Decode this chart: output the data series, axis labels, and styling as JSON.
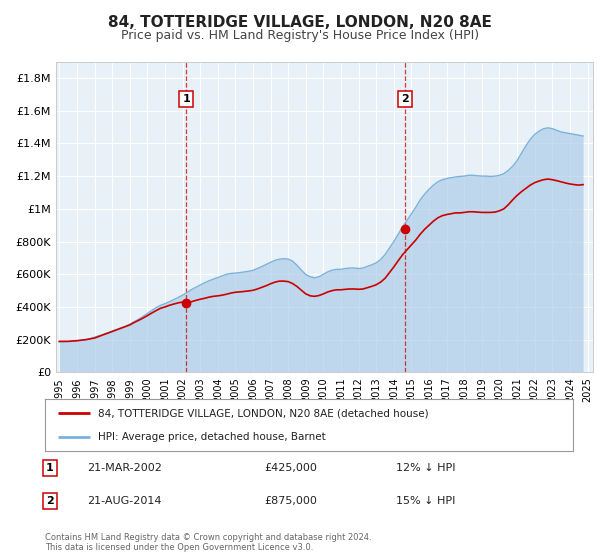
{
  "title": "84, TOTTERIDGE VILLAGE, LONDON, N20 8AE",
  "subtitle": "Price paid vs. HM Land Registry's House Price Index (HPI)",
  "title_fontsize": 11,
  "subtitle_fontsize": 9,
  "background_color": "#ffffff",
  "plot_bg_color": "#e8f0f8",
  "grid_color": "#ffffff",
  "ylim": [
    0,
    1900000
  ],
  "xlim_start": 1994.8,
  "xlim_end": 2025.3,
  "yticks": [
    0,
    200000,
    400000,
    600000,
    800000,
    1000000,
    1200000,
    1400000,
    1600000,
    1800000
  ],
  "ytick_labels": [
    "£0",
    "£200K",
    "£400K",
    "£600K",
    "£800K",
    "£1M",
    "£1.2M",
    "£1.4M",
    "£1.6M",
    "£1.8M"
  ],
  "event1_x": 2002.22,
  "event1_y": 425000,
  "event1_label": "1",
  "event1_date": "21-MAR-2002",
  "event1_price": "£425,000",
  "event1_hpi": "12% ↓ HPI",
  "event2_x": 2014.64,
  "event2_y": 875000,
  "event2_label": "2",
  "event2_date": "21-AUG-2014",
  "event2_price": "£875,000",
  "event2_hpi": "15% ↓ HPI",
  "red_line_color": "#cc0000",
  "blue_line_color": "#7ab3d9",
  "blue_fill_color": "#aecde8",
  "legend_label_red": "84, TOTTERIDGE VILLAGE, LONDON, N20 8AE (detached house)",
  "legend_label_blue": "HPI: Average price, detached house, Barnet",
  "footer1": "Contains HM Land Registry data © Crown copyright and database right 2024.",
  "footer2": "This data is licensed under the Open Government Licence v3.0.",
  "hpi_data_x": [
    1995.0,
    1995.25,
    1995.5,
    1995.75,
    1996.0,
    1996.25,
    1996.5,
    1996.75,
    1997.0,
    1997.25,
    1997.5,
    1997.75,
    1998.0,
    1998.25,
    1998.5,
    1998.75,
    1999.0,
    1999.25,
    1999.5,
    1999.75,
    2000.0,
    2000.25,
    2000.5,
    2000.75,
    2001.0,
    2001.25,
    2001.5,
    2001.75,
    2002.0,
    2002.25,
    2002.5,
    2002.75,
    2003.0,
    2003.25,
    2003.5,
    2003.75,
    2004.0,
    2004.25,
    2004.5,
    2004.75,
    2005.0,
    2005.25,
    2005.5,
    2005.75,
    2006.0,
    2006.25,
    2006.5,
    2006.75,
    2007.0,
    2007.25,
    2007.5,
    2007.75,
    2008.0,
    2008.25,
    2008.5,
    2008.75,
    2009.0,
    2009.25,
    2009.5,
    2009.75,
    2010.0,
    2010.25,
    2010.5,
    2010.75,
    2011.0,
    2011.25,
    2011.5,
    2011.75,
    2012.0,
    2012.25,
    2012.5,
    2012.75,
    2013.0,
    2013.25,
    2013.5,
    2013.75,
    2014.0,
    2014.25,
    2014.5,
    2014.75,
    2015.0,
    2015.25,
    2015.5,
    2015.75,
    2016.0,
    2016.25,
    2016.5,
    2016.75,
    2017.0,
    2017.25,
    2017.5,
    2017.75,
    2018.0,
    2018.25,
    2018.5,
    2018.75,
    2019.0,
    2019.25,
    2019.5,
    2019.75,
    2020.0,
    2020.25,
    2020.5,
    2020.75,
    2021.0,
    2021.25,
    2021.5,
    2021.75,
    2022.0,
    2022.25,
    2022.5,
    2022.75,
    2023.0,
    2023.25,
    2023.5,
    2023.75,
    2024.0,
    2024.25,
    2024.5,
    2024.75
  ],
  "hpi_data_y": [
    185000,
    186000,
    188000,
    190000,
    192000,
    196000,
    201000,
    207000,
    215000,
    224000,
    233000,
    242000,
    252000,
    262000,
    272000,
    282000,
    295000,
    310000,
    325000,
    342000,
    360000,
    378000,
    396000,
    410000,
    420000,
    432000,
    445000,
    458000,
    472000,
    488000,
    506000,
    520000,
    534000,
    548000,
    560000,
    570000,
    580000,
    590000,
    600000,
    605000,
    607000,
    610000,
    614000,
    618000,
    624000,
    635000,
    647000,
    660000,
    673000,
    685000,
    692000,
    695000,
    693000,
    680000,
    655000,
    625000,
    598000,
    585000,
    578000,
    585000,
    600000,
    615000,
    625000,
    630000,
    630000,
    635000,
    638000,
    638000,
    635000,
    638000,
    648000,
    658000,
    670000,
    690000,
    720000,
    760000,
    800000,
    845000,
    890000,
    930000,
    970000,
    1010000,
    1055000,
    1090000,
    1120000,
    1145000,
    1165000,
    1178000,
    1185000,
    1190000,
    1195000,
    1198000,
    1200000,
    1205000,
    1205000,
    1202000,
    1200000,
    1200000,
    1198000,
    1200000,
    1205000,
    1215000,
    1235000,
    1260000,
    1295000,
    1340000,
    1385000,
    1425000,
    1455000,
    1475000,
    1490000,
    1495000,
    1490000,
    1480000,
    1470000,
    1465000,
    1460000,
    1455000,
    1450000,
    1445000
  ],
  "red_data_x": [
    1995.0,
    1995.25,
    1995.5,
    1995.75,
    1996.0,
    1996.25,
    1996.5,
    1996.75,
    1997.0,
    1997.25,
    1997.5,
    1997.75,
    1998.0,
    1998.25,
    1998.5,
    1998.75,
    1999.0,
    1999.25,
    1999.5,
    1999.75,
    2000.0,
    2000.25,
    2000.5,
    2000.75,
    2001.0,
    2001.25,
    2001.5,
    2001.75,
    2002.0,
    2002.25,
    2002.5,
    2002.75,
    2003.0,
    2003.25,
    2003.5,
    2003.75,
    2004.0,
    2004.25,
    2004.5,
    2004.75,
    2005.0,
    2005.25,
    2005.5,
    2005.75,
    2006.0,
    2006.25,
    2006.5,
    2006.75,
    2007.0,
    2007.25,
    2007.5,
    2007.75,
    2008.0,
    2008.25,
    2008.5,
    2008.75,
    2009.0,
    2009.25,
    2009.5,
    2009.75,
    2010.0,
    2010.25,
    2010.5,
    2010.75,
    2011.0,
    2011.25,
    2011.5,
    2011.75,
    2012.0,
    2012.25,
    2012.5,
    2012.75,
    2013.0,
    2013.25,
    2013.5,
    2013.75,
    2014.0,
    2014.25,
    2014.5,
    2014.75,
    2015.0,
    2015.25,
    2015.5,
    2015.75,
    2016.0,
    2016.25,
    2016.5,
    2016.75,
    2017.0,
    2017.25,
    2017.5,
    2017.75,
    2018.0,
    2018.25,
    2018.5,
    2018.75,
    2019.0,
    2019.25,
    2019.5,
    2019.75,
    2020.0,
    2020.25,
    2020.5,
    2020.75,
    2021.0,
    2021.25,
    2021.5,
    2021.75,
    2022.0,
    2022.25,
    2022.5,
    2022.75,
    2023.0,
    2023.25,
    2023.5,
    2023.75,
    2024.0,
    2024.25,
    2024.5,
    2024.75
  ],
  "red_data_y": [
    190000,
    190000,
    190000,
    192000,
    194000,
    197000,
    200000,
    205000,
    210000,
    220000,
    230000,
    240000,
    250000,
    260000,
    270000,
    280000,
    290000,
    305000,
    318000,
    332000,
    347000,
    363000,
    378000,
    392000,
    400000,
    410000,
    418000,
    425000,
    430000,
    425000,
    432000,
    440000,
    447000,
    453000,
    460000,
    465000,
    468000,
    472000,
    478000,
    485000,
    490000,
    492000,
    495000,
    498000,
    502000,
    510000,
    520000,
    530000,
    542000,
    552000,
    558000,
    558000,
    555000,
    543000,
    525000,
    502000,
    480000,
    468000,
    465000,
    470000,
    480000,
    492000,
    500000,
    505000,
    505000,
    508000,
    510000,
    510000,
    508000,
    510000,
    518000,
    526000,
    536000,
    552000,
    575000,
    610000,
    645000,
    683000,
    720000,
    750000,
    780000,
    810000,
    845000,
    875000,
    900000,
    925000,
    945000,
    958000,
    965000,
    970000,
    975000,
    975000,
    978000,
    982000,
    982000,
    980000,
    978000,
    978000,
    978000,
    980000,
    988000,
    1000000,
    1025000,
    1055000,
    1082000,
    1105000,
    1125000,
    1145000,
    1160000,
    1170000,
    1178000,
    1182000,
    1178000,
    1172000,
    1165000,
    1158000,
    1152000,
    1148000,
    1145000,
    1148000
  ]
}
